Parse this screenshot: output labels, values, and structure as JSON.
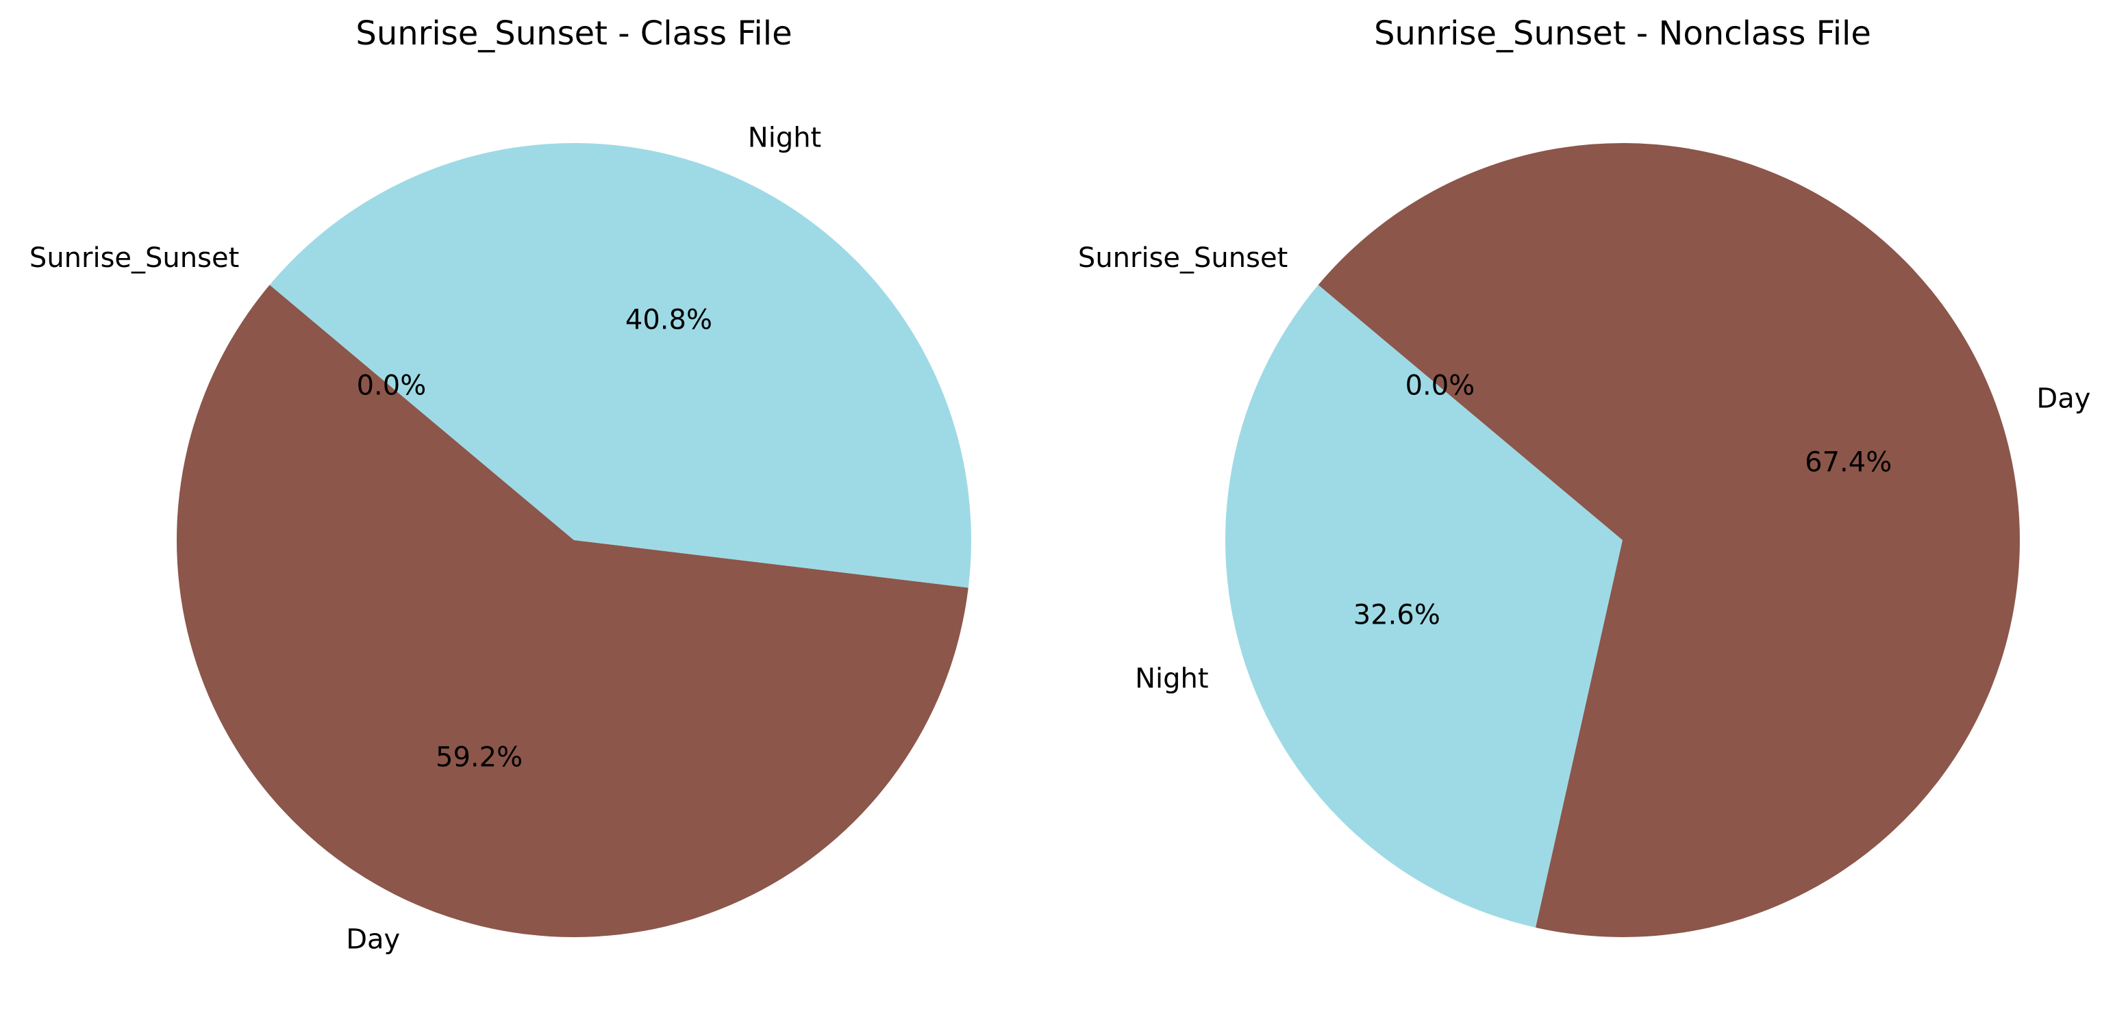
{
  "chart_data": [
    {
      "type": "pie",
      "title": "Sunrise_Sunset - Class File",
      "start_angle_deg": 140,
      "slices": [
        {
          "label": "Sunrise_Sunset",
          "value": 0.0,
          "pct_label": "0.0%",
          "color": "#e377c2"
        },
        {
          "label": "Day",
          "value": 59.2,
          "pct_label": "59.2%",
          "color": "#8c564b"
        },
        {
          "label": "Night",
          "value": 40.8,
          "pct_label": "40.8%",
          "color": "#9edae5"
        }
      ]
    },
    {
      "type": "pie",
      "title": "Sunrise_Sunset - Nonclass File",
      "start_angle_deg": 140,
      "slices": [
        {
          "label": "Sunrise_Sunset",
          "value": 0.0,
          "pct_label": "0.0%",
          "color": "#e377c2"
        },
        {
          "label": "Night",
          "value": 32.6,
          "pct_label": "32.6%",
          "color": "#9edae5"
        },
        {
          "label": "Day",
          "value": 67.4,
          "pct_label": "67.4%",
          "color": "#8c564b"
        }
      ]
    }
  ]
}
